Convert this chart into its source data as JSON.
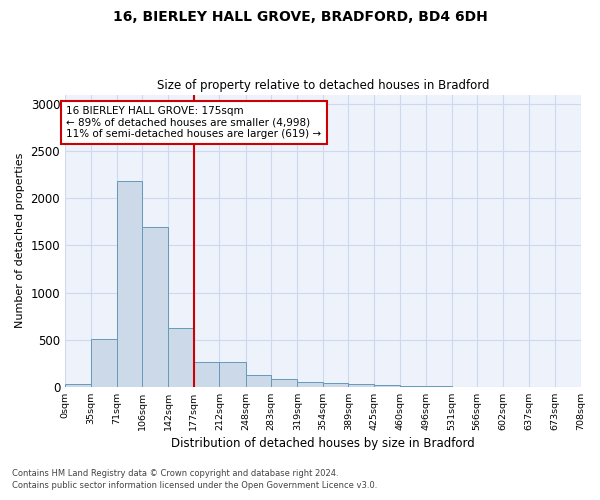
{
  "title_line1": "16, BIERLEY HALL GROVE, BRADFORD, BD4 6DH",
  "title_line2": "Size of property relative to detached houses in Bradford",
  "xlabel": "Distribution of detached houses by size in Bradford",
  "ylabel": "Number of detached properties",
  "annotation_line1": "16 BIERLEY HALL GROVE: 175sqm",
  "annotation_line2": "← 89% of detached houses are smaller (4,998)",
  "annotation_line3": "11% of semi-detached houses are larger (619) →",
  "bin_edges": [
    0,
    35,
    71,
    106,
    142,
    177,
    212,
    248,
    283,
    319,
    354,
    389,
    425,
    460,
    496,
    531,
    566,
    602,
    637,
    673,
    708
  ],
  "bin_labels": [
    "0sqm",
    "35sqm",
    "71sqm",
    "106sqm",
    "142sqm",
    "177sqm",
    "212sqm",
    "248sqm",
    "283sqm",
    "319sqm",
    "354sqm",
    "389sqm",
    "425sqm",
    "460sqm",
    "496sqm",
    "531sqm",
    "566sqm",
    "602sqm",
    "637sqm",
    "673sqm",
    "708sqm"
  ],
  "bar_values": [
    30,
    510,
    2185,
    1700,
    625,
    260,
    260,
    125,
    80,
    55,
    40,
    30,
    20,
    5,
    5,
    0,
    0,
    0,
    0,
    0
  ],
  "bar_color": "#ccd9e8",
  "bar_edge_color": "#6699bb",
  "vline_color": "#cc0000",
  "vline_x": 177,
  "annotation_box_color": "#cc0000",
  "grid_color": "#ccd9ee",
  "background_color": "#eef2fb",
  "ylim": [
    0,
    3100
  ],
  "yticks": [
    0,
    500,
    1000,
    1500,
    2000,
    2500,
    3000
  ],
  "footnote1": "Contains HM Land Registry data © Crown copyright and database right 2024.",
  "footnote2": "Contains public sector information licensed under the Open Government Licence v3.0."
}
